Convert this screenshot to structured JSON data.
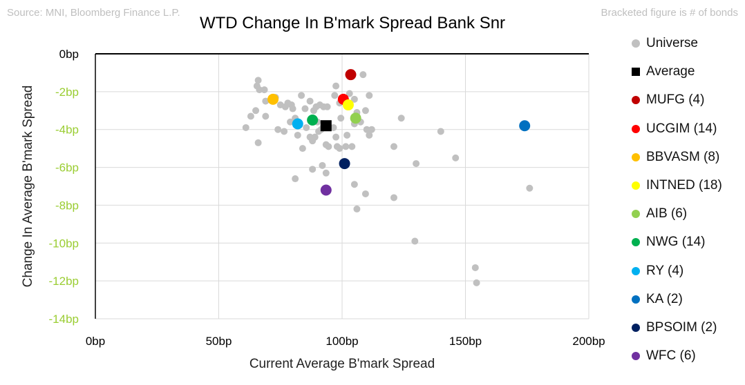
{
  "header": {
    "source": "Source: MNI, Bloomberg Finance L.P.",
    "note": "Bracketed figure is # of bonds",
    "title": "WTD Change In B'mark Spread Bank Snr"
  },
  "chart_data": {
    "type": "scatter",
    "title": "WTD Change In B'mark Spread Bank Snr",
    "xlabel": "Current Average B'mark Spread",
    "ylabel": "Change In Average B'mark Spread",
    "xlim": [
      0,
      200
    ],
    "ylim": [
      -14,
      0
    ],
    "x_ticks": [
      0,
      50,
      100,
      150,
      200
    ],
    "x_tick_labels": [
      "0bp",
      "50bp",
      "100bp",
      "150bp",
      "200bp"
    ],
    "y_ticks": [
      0,
      -2,
      -4,
      -6,
      -8,
      -10,
      -12,
      -14
    ],
    "y_tick_labels": [
      "0bp",
      "-2bp",
      "-4bp",
      "-6bp",
      "-8bp",
      "-10bp",
      "-12bp",
      "-14bp"
    ],
    "y_tick_color": "#9acd32",
    "grid": true,
    "legend_position": "right",
    "universe": {
      "name": "Universe",
      "color": "#c0c0c0",
      "points": [
        [
          66,
          -1.4
        ],
        [
          65.5,
          -1.7
        ],
        [
          66.5,
          -1.9
        ],
        [
          68.5,
          -1.9
        ],
        [
          69,
          -2.5
        ],
        [
          73,
          -2.3
        ],
        [
          75,
          -2.7
        ],
        [
          77,
          -2.8
        ],
        [
          78,
          -2.6
        ],
        [
          79.5,
          -2.7
        ],
        [
          80,
          -2.9
        ],
        [
          83.5,
          -2.2
        ],
        [
          85,
          -2.9
        ],
        [
          87,
          -2.5
        ],
        [
          88.5,
          -3.0
        ],
        [
          89.5,
          -2.8
        ],
        [
          91,
          -2.7
        ],
        [
          92.5,
          -2.8
        ],
        [
          94,
          -2.8
        ],
        [
          97,
          -2.2
        ],
        [
          97.5,
          -1.7
        ],
        [
          99,
          -2.6
        ],
        [
          103,
          -2.1
        ],
        [
          105,
          -2.4
        ],
        [
          106,
          -3.1
        ],
        [
          108.5,
          -1.1
        ],
        [
          109.5,
          -3.0
        ],
        [
          111,
          -2.2
        ],
        [
          61,
          -3.9
        ],
        [
          63,
          -3.3
        ],
        [
          65,
          -3.0
        ],
        [
          66,
          -4.7
        ],
        [
          69,
          -3.3
        ],
        [
          74,
          -4.0
        ],
        [
          76.5,
          -4.1
        ],
        [
          79,
          -3.6
        ],
        [
          81,
          -3.4
        ],
        [
          82,
          -4.3
        ],
        [
          84,
          -5.0
        ],
        [
          85.5,
          -3.9
        ],
        [
          87,
          -4.4
        ],
        [
          88,
          -4.6
        ],
        [
          89,
          -4.4
        ],
        [
          90,
          -3.6
        ],
        [
          90.5,
          -4.1
        ],
        [
          91.5,
          -4.0
        ],
        [
          92.5,
          -3.8
        ],
        [
          93.5,
          -4.8
        ],
        [
          94.5,
          -4.9
        ],
        [
          96.5,
          -3.9
        ],
        [
          97.5,
          -4.4
        ],
        [
          98,
          -4.9
        ],
        [
          99,
          -5.0
        ],
        [
          99.5,
          -3.4
        ],
        [
          101.5,
          -4.9
        ],
        [
          102,
          -4.3
        ],
        [
          104,
          -4.9
        ],
        [
          105,
          -3.7
        ],
        [
          106,
          -3.4
        ],
        [
          107.5,
          -3.6
        ],
        [
          110,
          -4.0
        ],
        [
          112,
          -4.0
        ],
        [
          111,
          -4.3
        ],
        [
          121,
          -4.9
        ],
        [
          124,
          -3.4
        ],
        [
          130,
          -5.8
        ],
        [
          140,
          -4.1
        ],
        [
          146,
          -5.5
        ],
        [
          81,
          -6.6
        ],
        [
          88,
          -6.1
        ],
        [
          92,
          -5.9
        ],
        [
          93.5,
          -6.3
        ],
        [
          105,
          -6.9
        ],
        [
          106,
          -8.2
        ],
        [
          109.5,
          -7.4
        ],
        [
          121,
          -7.6
        ],
        [
          129.5,
          -9.9
        ],
        [
          154,
          -11.3
        ],
        [
          154.5,
          -12.1
        ],
        [
          176,
          -7.1
        ]
      ]
    },
    "average": {
      "name": "Average",
      "x": 93.5,
      "y": -3.8,
      "color": "#000000"
    },
    "series": [
      {
        "name": "MUFG",
        "count": "(4)",
        "x": 103.5,
        "y": -1.1,
        "color": "#c00000"
      },
      {
        "name": "UCGIM",
        "count": "(14)",
        "x": 100.5,
        "y": -2.4,
        "color": "#ff0000"
      },
      {
        "name": "BBVASM",
        "count": "(8)",
        "x": 72,
        "y": -2.4,
        "color": "#ffc000"
      },
      {
        "name": "INTNED",
        "count": "(18)",
        "x": 102.5,
        "y": -2.7,
        "color": "#ffff00"
      },
      {
        "name": "AIB",
        "count": "(6)",
        "x": 105.5,
        "y": -3.4,
        "color": "#92d050"
      },
      {
        "name": "NWG",
        "count": "(14)",
        "x": 88,
        "y": -3.5,
        "color": "#00b050"
      },
      {
        "name": "RY",
        "count": "(4)",
        "x": 82,
        "y": -3.7,
        "color": "#00b0f0"
      },
      {
        "name": "KA",
        "count": "(2)",
        "x": 174,
        "y": -3.8,
        "color": "#0070c0"
      },
      {
        "name": "BPSOIM",
        "count": "(2)",
        "x": 101,
        "y": -5.8,
        "color": "#002060"
      },
      {
        "name": "WFC",
        "count": "(6)",
        "x": 93.5,
        "y": -7.2,
        "color": "#7030a0"
      }
    ]
  }
}
